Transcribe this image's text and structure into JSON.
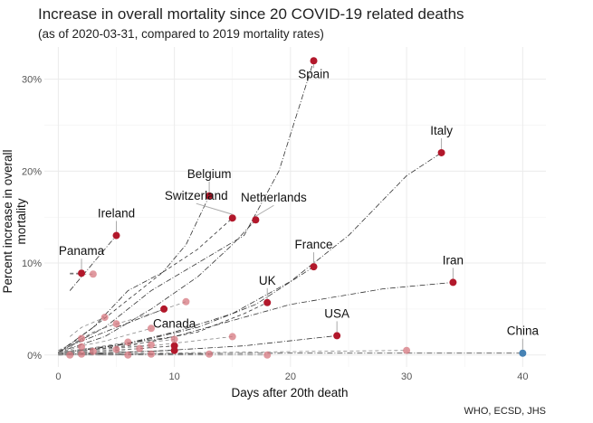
{
  "chart_data": {
    "type": "scatter",
    "title": "Increase in overall mortality since 20 COVID-19 related deaths",
    "subtitle": "(as of 2020-03-31, compared to 2019 mortality rates)",
    "xlabel": "Days after 20th death",
    "ylabel": "Percent increase in overall mortality",
    "caption": "WHO, ECSD, JHS",
    "xlim": [
      -1.2,
      42
    ],
    "ylim": [
      -1.3,
      33.5
    ],
    "xticks": [
      0,
      10,
      20,
      30,
      40
    ],
    "xtick_labels": [
      "0",
      "10",
      "20",
      "30",
      "40"
    ],
    "yticks": [
      0,
      10,
      20,
      30
    ],
    "ytick_labels": [
      "0%",
      "10%",
      "20%",
      "30%"
    ],
    "grid": true,
    "colors": {
      "labeled": "#b2182b",
      "unlabeled": "#d6777f",
      "china": "#4682b4",
      "line": "#333333"
    },
    "series": [
      {
        "name": "Spain",
        "highlight": "labeled",
        "dash": "dotdash",
        "x": [
          0,
          4,
          8,
          12,
          16,
          19,
          21,
          22
        ],
        "y": [
          0.3,
          3,
          7,
          10,
          13,
          20,
          28,
          32
        ]
      },
      {
        "name": "Italy",
        "highlight": "labeled",
        "dash": "dotdash",
        "x": [
          0,
          5,
          10,
          15,
          20,
          25,
          30,
          33
        ],
        "y": [
          0.2,
          1,
          2.5,
          4.5,
          8,
          13,
          19.5,
          22
        ]
      },
      {
        "name": "Belgium",
        "highlight": "labeled",
        "dash": "dotdash",
        "x": [
          0,
          3,
          6,
          9,
          11,
          13
        ],
        "y": [
          0.3,
          3,
          7,
          9,
          12,
          17.3
        ]
      },
      {
        "name": "Switzerland",
        "highlight": "labeled",
        "dash": "dashed",
        "x": [
          0,
          3,
          6,
          9,
          12,
          15
        ],
        "y": [
          0.2,
          3,
          6,
          9,
          11.5,
          14.9
        ]
      },
      {
        "name": "Netherlands",
        "highlight": "labeled",
        "dash": "dotdash",
        "x": [
          0,
          4,
          8,
          12,
          15,
          17
        ],
        "y": [
          0.3,
          2,
          5,
          8.5,
          12,
          14.7
        ]
      },
      {
        "name": "Ireland",
        "highlight": "labeled",
        "dash": "dotdash",
        "x": [
          1,
          3,
          5
        ],
        "y": [
          7,
          10,
          13
        ]
      },
      {
        "name": "Panama",
        "highlight": "labeled",
        "dash": "dashed",
        "x": [
          1,
          2
        ],
        "y": [
          8.9,
          8.9
        ]
      },
      {
        "name": "France",
        "highlight": "labeled",
        "dash": "dotdash",
        "x": [
          0,
          6,
          12,
          17,
          22
        ],
        "y": [
          0.2,
          1.2,
          3,
          5.5,
          9.6
        ]
      },
      {
        "name": "Iran",
        "highlight": "labeled",
        "dash": "dotdash",
        "x": [
          0,
          10,
          20,
          28,
          34
        ],
        "y": [
          0.2,
          2,
          5.5,
          7.2,
          7.9
        ]
      },
      {
        "name": "UK",
        "highlight": "labeled",
        "dash": "dashed",
        "x": [
          0,
          6,
          12,
          16,
          18
        ],
        "y": [
          0.2,
          1,
          2.5,
          4.5,
          5.7
        ]
      },
      {
        "name": "USA",
        "highlight": "labeled",
        "dash": "dotdash",
        "x": [
          0,
          8,
          16,
          24
        ],
        "y": [
          0.1,
          0.4,
          1,
          2.1
        ]
      },
      {
        "name": "Canada",
        "highlight": "labeled",
        "dash": "dashed",
        "x": [
          0,
          5,
          10
        ],
        "y": [
          0.2,
          0.5,
          1.0
        ]
      },
      {
        "name": "China",
        "highlight": "china",
        "dash": "dotdash",
        "x": [
          0,
          20,
          40
        ],
        "y": [
          0.1,
          0.2,
          0.2
        ]
      },
      {
        "name": "",
        "highlight": "labeled",
        "dash": "dotdash",
        "x": [
          1,
          5,
          9.1
        ],
        "y": [
          1,
          3,
          5.0
        ]
      },
      {
        "name": "",
        "highlight": "labeled",
        "dash": "dashed",
        "x": [
          0,
          5,
          10
        ],
        "y": [
          0.1,
          0.3,
          0.5
        ]
      },
      {
        "name": "",
        "highlight": "unlabeled",
        "dash": "dashed",
        "x": [
          1,
          3
        ],
        "y": [
          8.8,
          8.8
        ]
      },
      {
        "name": "",
        "highlight": "unlabeled",
        "dash": "dashed",
        "x": [
          0,
          4,
          8,
          11
        ],
        "y": [
          0.5,
          3,
          4.5,
          5.8
        ]
      },
      {
        "name": "",
        "highlight": "unlabeled",
        "dash": "dashed",
        "x": [
          1,
          2,
          4
        ],
        "y": [
          2,
          3,
          4.1
        ]
      },
      {
        "name": "",
        "highlight": "unlabeled",
        "dash": "dashed",
        "x": [
          1,
          3,
          5
        ],
        "y": [
          1,
          2.5,
          3.4
        ]
      },
      {
        "name": "",
        "highlight": "unlabeled",
        "dash": "dashed",
        "x": [
          0,
          4,
          8
        ],
        "y": [
          0.5,
          1.5,
          2.9
        ]
      },
      {
        "name": "",
        "highlight": "unlabeled",
        "dash": "dashed",
        "x": [
          1,
          2
        ],
        "y": [
          0.8,
          1.8
        ]
      },
      {
        "name": "",
        "highlight": "unlabeled",
        "dash": "dashed",
        "x": [
          0,
          3,
          6
        ],
        "y": [
          0.3,
          0.8,
          1.4
        ]
      },
      {
        "name": "",
        "highlight": "unlabeled",
        "dash": "dashed",
        "x": [
          0,
          8,
          15
        ],
        "y": [
          0.3,
          1,
          2.0
        ]
      },
      {
        "name": "",
        "highlight": "unlabeled",
        "dash": "dashed",
        "x": [
          0,
          5,
          10
        ],
        "y": [
          0.3,
          1,
          1.7
        ]
      },
      {
        "name": "",
        "highlight": "unlabeled",
        "dash": "dashed",
        "x": [
          0,
          7
        ],
        "y": [
          0.2,
          0.7
        ]
      },
      {
        "name": "",
        "highlight": "unlabeled",
        "dash": "dashed",
        "x": [
          0,
          8
        ],
        "y": [
          0.2,
          1.1
        ]
      },
      {
        "name": "",
        "highlight": "unlabeled",
        "dash": "dashed",
        "x": [
          0,
          5
        ],
        "y": [
          0.1,
          0.6
        ]
      },
      {
        "name": "",
        "highlight": "unlabeled",
        "dash": "dashed",
        "x": [
          0,
          3
        ],
        "y": [
          0.1,
          0.4
        ]
      },
      {
        "name": "",
        "highlight": "unlabeled",
        "dash": "dashed",
        "x": [
          1
        ],
        "y": [
          0
        ]
      },
      {
        "name": "",
        "highlight": "unlabeled",
        "dash": "dashed",
        "x": [
          0,
          6
        ],
        "y": [
          0,
          0
        ]
      },
      {
        "name": "",
        "highlight": "unlabeled",
        "dash": "dashed",
        "x": [
          0,
          8
        ],
        "y": [
          0,
          0.1
        ]
      },
      {
        "name": "",
        "highlight": "unlabeled",
        "dash": "dotdash",
        "x": [
          0,
          13
        ],
        "y": [
          0,
          0.1
        ]
      },
      {
        "name": "",
        "highlight": "unlabeled",
        "dash": "dotdash",
        "x": [
          0,
          18
        ],
        "y": [
          0,
          0
        ]
      },
      {
        "name": "",
        "highlight": "unlabeled",
        "dash": "dashed",
        "x": [
          0,
          2
        ],
        "y": [
          0,
          0.1
        ]
      },
      {
        "name": "",
        "highlight": "unlabeled",
        "dash": "dashed",
        "x": [
          0,
          2
        ],
        "y": [
          0.3,
          0.9
        ]
      },
      {
        "name": "",
        "highlight": "unlabeled",
        "dash": "dashed",
        "x": [
          0,
          15,
          30
        ],
        "y": [
          0.1,
          0.3,
          0.5
        ]
      }
    ]
  }
}
